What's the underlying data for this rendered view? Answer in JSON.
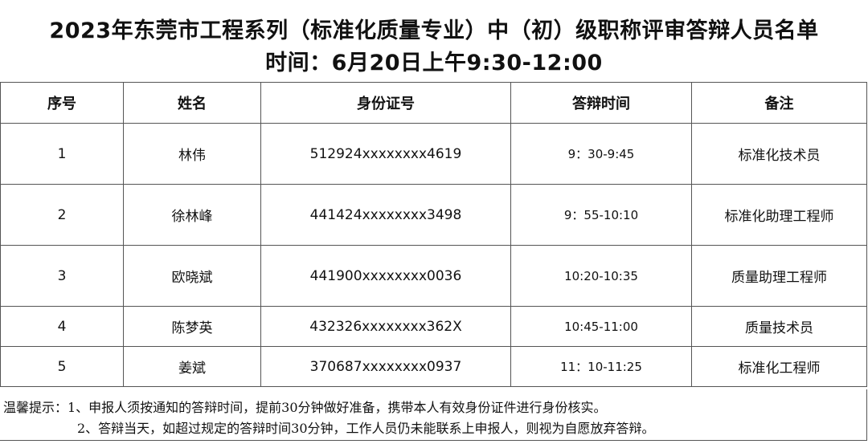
{
  "title": "2023年东莞市工程系列（标准化质量专业）中（初）级职称评审答辩人员名单",
  "subtitle": "时间：6月20日上午9:30-12:00",
  "table": {
    "headers": [
      "序号",
      "姓名",
      "身份证号",
      "答辩时间",
      "备注"
    ],
    "rows": [
      [
        "1",
        "林伟",
        "512924xxxxxxxx4619",
        "9：30-9:45",
        "标准化技术员"
      ],
      [
        "2",
        "徐林峰",
        "441424xxxxxxxx3498",
        "9：55-10:10",
        "标准化助理工程师"
      ],
      [
        "3",
        "欧晓斌",
        "441900xxxxxxxx0036",
        "10:20-10:35",
        "质量助理工程师"
      ],
      [
        "4",
        "陈梦英",
        "432326xxxxxxxx362X",
        "10:45-11:00",
        "质量技术员"
      ],
      [
        "5",
        "姜斌",
        "370687xxxxxxxx0937",
        "11：10-11:25",
        "标准化工程师"
      ]
    ]
  },
  "notes": [
    "温馨提示：1、申报人须按通知的答辩时间，提前30分钟做好准备，携带本人有效身份证件进行身份核实。",
    "2、答辩当天，如超过规定的答辩时间30分钟，工作人员仍未能联系上申报人，则视为自愿放弃答辩。"
  ]
}
